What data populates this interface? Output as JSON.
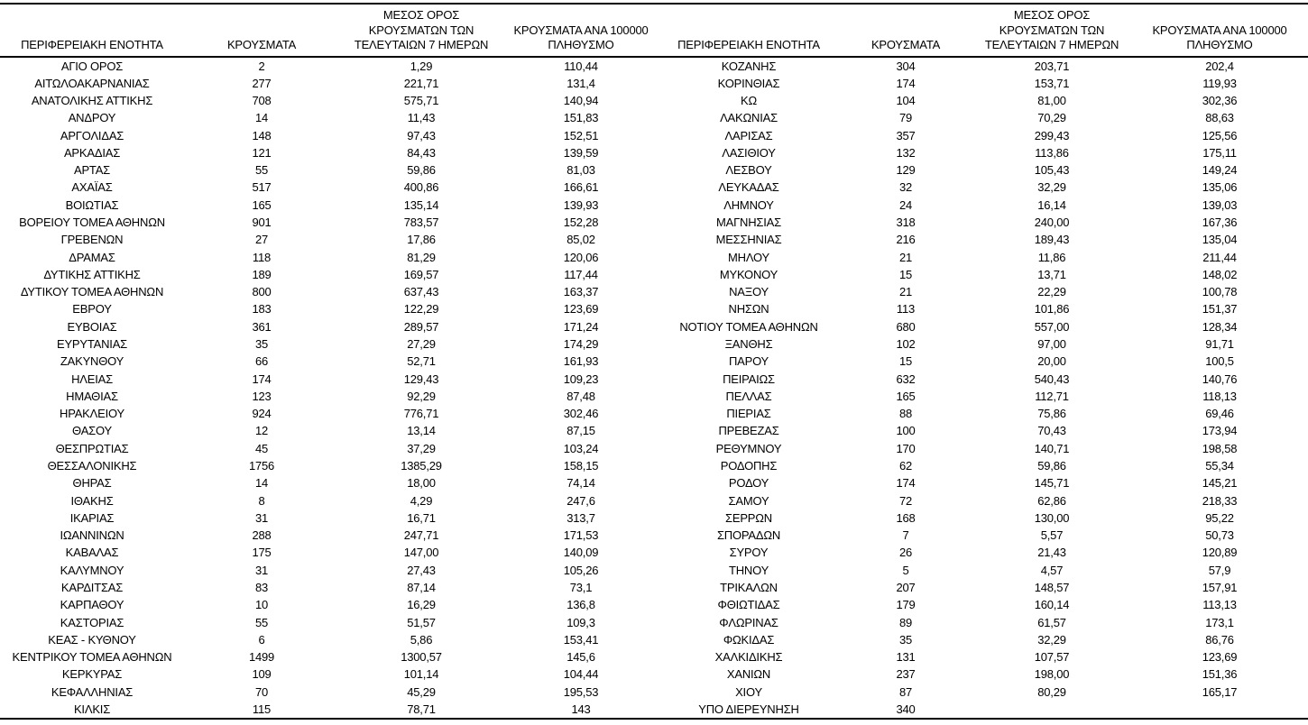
{
  "page": {
    "background": "#ffffff",
    "text_color": "#000000",
    "border_color": "#000000"
  },
  "chart_data": {
    "type": "table",
    "title": "",
    "layout": "two side-by-side panels sharing identical column headers, horizontal rules only (top, under header, bottom)",
    "column_headers": {
      "region": "ΠΕΡΙΦΕΡΕΙΑΚΗ ΕΝΟΤΗΤΑ",
      "cases": "ΚΡΟΥΣΜΑΤΑ",
      "avg_7day_lines": [
        "ΜΕΣΟΣ ΟΡΟΣ",
        "ΚΡΟΥΣΜΑΤΩΝ ΤΩΝ",
        "ΤΕΛΕΥΤΑΙΩΝ 7 ΗΜΕΡΩΝ"
      ],
      "per_100k_lines": [
        "ΚΡΟΥΣΜΑΤΑ ΑΝΑ 100000",
        "ΠΛΗΘΥΣΜΟ"
      ]
    },
    "left_rows": [
      [
        "ΑΓΙΟ ΟΡΟΣ",
        "2",
        "1,29",
        "110,44"
      ],
      [
        "ΑΙΤΩΛΟΑΚΑΡΝΑΝΙΑΣ",
        "277",
        "221,71",
        "131,4"
      ],
      [
        "ΑΝΑΤΟΛΙΚΗΣ ΑΤΤΙΚΗΣ",
        "708",
        "575,71",
        "140,94"
      ],
      [
        "ΑΝΔΡΟΥ",
        "14",
        "11,43",
        "151,83"
      ],
      [
        "ΑΡΓΟΛΙΔΑΣ",
        "148",
        "97,43",
        "152,51"
      ],
      [
        "ΑΡΚΑΔΙΑΣ",
        "121",
        "84,43",
        "139,59"
      ],
      [
        "ΑΡΤΑΣ",
        "55",
        "59,86",
        "81,03"
      ],
      [
        "ΑΧΑΪΑΣ",
        "517",
        "400,86",
        "166,61"
      ],
      [
        "ΒΟΙΩΤΙΑΣ",
        "165",
        "135,14",
        "139,93"
      ],
      [
        "ΒΟΡΕΙΟΥ ΤΟΜΕΑ ΑΘΗΝΩΝ",
        "901",
        "783,57",
        "152,28"
      ],
      [
        "ΓΡΕΒΕΝΩΝ",
        "27",
        "17,86",
        "85,02"
      ],
      [
        "ΔΡΑΜΑΣ",
        "118",
        "81,29",
        "120,06"
      ],
      [
        "ΔΥΤΙΚΗΣ ΑΤΤΙΚΗΣ",
        "189",
        "169,57",
        "117,44"
      ],
      [
        "ΔΥΤΙΚΟΥ ΤΟΜΕΑ ΑΘΗΝΩΝ",
        "800",
        "637,43",
        "163,37"
      ],
      [
        "ΕΒΡΟΥ",
        "183",
        "122,29",
        "123,69"
      ],
      [
        "ΕΥΒΟΙΑΣ",
        "361",
        "289,57",
        "171,24"
      ],
      [
        "ΕΥΡΥΤΑΝΙΑΣ",
        "35",
        "27,29",
        "174,29"
      ],
      [
        "ΖΑΚΥΝΘΟΥ",
        "66",
        "52,71",
        "161,93"
      ],
      [
        "ΗΛΕΙΑΣ",
        "174",
        "129,43",
        "109,23"
      ],
      [
        "ΗΜΑΘΙΑΣ",
        "123",
        "92,29",
        "87,48"
      ],
      [
        "ΗΡΑΚΛΕΙΟΥ",
        "924",
        "776,71",
        "302,46"
      ],
      [
        "ΘΑΣΟΥ",
        "12",
        "13,14",
        "87,15"
      ],
      [
        "ΘΕΣΠΡΩΤΙΑΣ",
        "45",
        "37,29",
        "103,24"
      ],
      [
        "ΘΕΣΣΑΛΟΝΙΚΗΣ",
        "1756",
        "1385,29",
        "158,15"
      ],
      [
        "ΘΗΡΑΣ",
        "14",
        "18,00",
        "74,14"
      ],
      [
        "ΙΘΑΚΗΣ",
        "8",
        "4,29",
        "247,6"
      ],
      [
        "ΙΚΑΡΙΑΣ",
        "31",
        "16,71",
        "313,7"
      ],
      [
        "ΙΩΑΝΝΙΝΩΝ",
        "288",
        "247,71",
        "171,53"
      ],
      [
        "ΚΑΒΑΛΑΣ",
        "175",
        "147,00",
        "140,09"
      ],
      [
        "ΚΑΛΥΜΝΟΥ",
        "31",
        "27,43",
        "105,26"
      ],
      [
        "ΚΑΡΔΙΤΣΑΣ",
        "83",
        "87,14",
        "73,1"
      ],
      [
        "ΚΑΡΠΑΘΟΥ",
        "10",
        "16,29",
        "136,8"
      ],
      [
        "ΚΑΣΤΟΡΙΑΣ",
        "55",
        "51,57",
        "109,3"
      ],
      [
        "ΚΕΑΣ - ΚΥΘΝΟΥ",
        "6",
        "5,86",
        "153,41"
      ],
      [
        "ΚΕΝΤΡΙΚΟΥ ΤΟΜΕΑ ΑΘΗΝΩΝ",
        "1499",
        "1300,57",
        "145,6"
      ],
      [
        "ΚΕΡΚΥΡΑΣ",
        "109",
        "101,14",
        "104,44"
      ],
      [
        "ΚΕΦΑΛΛΗΝΙΑΣ",
        "70",
        "45,29",
        "195,53"
      ],
      [
        "ΚΙΛΚΙΣ",
        "115",
        "78,71",
        "143"
      ]
    ],
    "right_rows": [
      [
        "ΚΟΖΑΝΗΣ",
        "304",
        "203,71",
        "202,4"
      ],
      [
        "ΚΟΡΙΝΘΙΑΣ",
        "174",
        "153,71",
        "119,93"
      ],
      [
        "ΚΩ",
        "104",
        "81,00",
        "302,36"
      ],
      [
        "ΛΑΚΩΝΙΑΣ",
        "79",
        "70,29",
        "88,63"
      ],
      [
        "ΛΑΡΙΣΑΣ",
        "357",
        "299,43",
        "125,56"
      ],
      [
        "ΛΑΣΙΘΙΟΥ",
        "132",
        "113,86",
        "175,11"
      ],
      [
        "ΛΕΣΒΟΥ",
        "129",
        "105,43",
        "149,24"
      ],
      [
        "ΛΕΥΚΑΔΑΣ",
        "32",
        "32,29",
        "135,06"
      ],
      [
        "ΛΗΜΝΟΥ",
        "24",
        "16,14",
        "139,03"
      ],
      [
        "ΜΑΓΝΗΣΙΑΣ",
        "318",
        "240,00",
        "167,36"
      ],
      [
        "ΜΕΣΣΗΝΙΑΣ",
        "216",
        "189,43",
        "135,04"
      ],
      [
        "ΜΗΛΟΥ",
        "21",
        "11,86",
        "211,44"
      ],
      [
        "ΜΥΚΟΝΟΥ",
        "15",
        "13,71",
        "148,02"
      ],
      [
        "ΝΑΞΟΥ",
        "21",
        "22,29",
        "100,78"
      ],
      [
        "ΝΗΣΩΝ",
        "113",
        "101,86",
        "151,37"
      ],
      [
        "ΝΟΤΙΟΥ ΤΟΜΕΑ ΑΘΗΝΩΝ",
        "680",
        "557,00",
        "128,34"
      ],
      [
        "ΞΑΝΘΗΣ",
        "102",
        "97,00",
        "91,71"
      ],
      [
        "ΠΑΡΟΥ",
        "15",
        "20,00",
        "100,5"
      ],
      [
        "ΠΕΙΡΑΙΩΣ",
        "632",
        "540,43",
        "140,76"
      ],
      [
        "ΠΕΛΛΑΣ",
        "165",
        "112,71",
        "118,13"
      ],
      [
        "ΠΙΕΡΙΑΣ",
        "88",
        "75,86",
        "69,46"
      ],
      [
        "ΠΡΕΒΕΖΑΣ",
        "100",
        "70,43",
        "173,94"
      ],
      [
        "ΡΕΘΥΜΝΟΥ",
        "170",
        "140,71",
        "198,58"
      ],
      [
        "ΡΟΔΟΠΗΣ",
        "62",
        "59,86",
        "55,34"
      ],
      [
        "ΡΟΔΟΥ",
        "174",
        "145,71",
        "145,21"
      ],
      [
        "ΣΑΜΟΥ",
        "72",
        "62,86",
        "218,33"
      ],
      [
        "ΣΕΡΡΩΝ",
        "168",
        "130,00",
        "95,22"
      ],
      [
        "ΣΠΟΡΑΔΩΝ",
        "7",
        "5,57",
        "50,73"
      ],
      [
        "ΣΥΡΟΥ",
        "26",
        "21,43",
        "120,89"
      ],
      [
        "ΤΗΝΟΥ",
        "5",
        "4,57",
        "57,9"
      ],
      [
        "ΤΡΙΚΑΛΩΝ",
        "207",
        "148,57",
        "157,91"
      ],
      [
        "ΦΘΙΩΤΙΔΑΣ",
        "179",
        "160,14",
        "113,13"
      ],
      [
        "ΦΛΩΡΙΝΑΣ",
        "89",
        "61,57",
        "173,1"
      ],
      [
        "ΦΩΚΙΔΑΣ",
        "35",
        "32,29",
        "86,76"
      ],
      [
        "ΧΑΛΚΙΔΙΚΗΣ",
        "131",
        "107,57",
        "123,69"
      ],
      [
        "ΧΑΝΙΩΝ",
        "237",
        "198,00",
        "151,36"
      ],
      [
        "ΧΙΟΥ",
        "87",
        "80,29",
        "165,17"
      ],
      [
        "ΥΠΟ ΔΙΕΡΕΥΝΗΣΗ",
        "340",
        "",
        ""
      ]
    ]
  }
}
